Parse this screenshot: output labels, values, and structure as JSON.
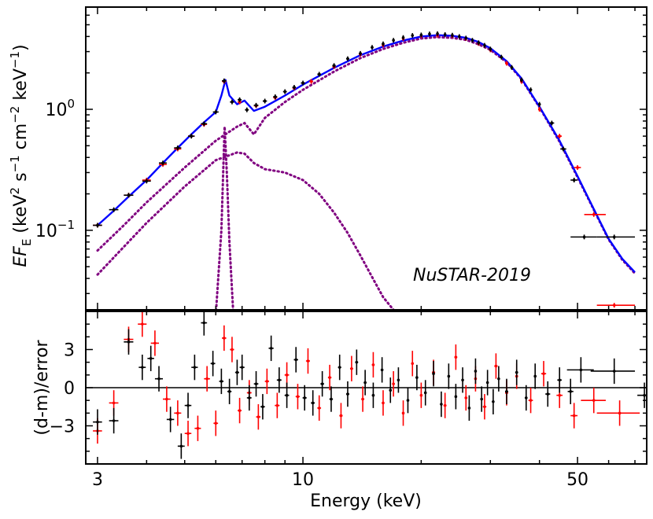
{
  "chart_data": {
    "type": "scatter",
    "annotation": "NuSTAR-2019",
    "xlabel": "Energy (keV)",
    "x_scale": "log",
    "x_ticks": [
      {
        "value": 3,
        "label": "3"
      },
      {
        "value": 10,
        "label": "10"
      },
      {
        "value": 50,
        "label": "50"
      }
    ],
    "xlim": [
      2.8,
      75
    ],
    "top_panel": {
      "ylabel_parts": [
        "EF",
        "E",
        " (keV",
        "2",
        " s",
        "−1",
        " cm",
        "−2",
        " keV",
        "−1",
        ")"
      ],
      "y_scale": "log",
      "ylim": [
        0.022,
        7
      ],
      "y_ticks": [
        {
          "value": 0.1,
          "mantissa": "10",
          "exp": "−1"
        },
        {
          "value": 1.0,
          "mantissa": "10",
          "exp": "0"
        }
      ],
      "model_total": {
        "name": "total model",
        "color": "#0000ff",
        "x": [
          3.0,
          3.3,
          3.6,
          4.0,
          4.4,
          4.8,
          5.2,
          5.6,
          6.0,
          6.2,
          6.35,
          6.5,
          6.8,
          7.1,
          7.5,
          8.0,
          9.0,
          10,
          12,
          14,
          16,
          18,
          20,
          22,
          24,
          26,
          28,
          30,
          33,
          36,
          40,
          45,
          50,
          55,
          60,
          65,
          70
        ],
        "y": [
          0.11,
          0.145,
          0.19,
          0.26,
          0.36,
          0.48,
          0.62,
          0.78,
          0.95,
          1.3,
          1.75,
          1.3,
          1.1,
          1.18,
          0.97,
          1.05,
          1.3,
          1.6,
          2.2,
          2.8,
          3.3,
          3.7,
          4.0,
          4.1,
          4.05,
          3.9,
          3.6,
          3.2,
          2.5,
          1.8,
          1.05,
          0.55,
          0.28,
          0.15,
          0.085,
          0.058,
          0.045
        ]
      },
      "model_components": [
        {
          "name": "component 1",
          "color": "#800080",
          "style": "dotted",
          "x": [
            3.0,
            3.5,
            4.0,
            5.0,
            6.0,
            6.8,
            7.1,
            7.5,
            8.0,
            9.0,
            10,
            12,
            14,
            16,
            18,
            20,
            22,
            24,
            26,
            28,
            30,
            33,
            36,
            40,
            45,
            50,
            55,
            60,
            65,
            70
          ],
          "y": [
            0.068,
            0.11,
            0.17,
            0.33,
            0.55,
            0.72,
            0.77,
            0.62,
            0.85,
            1.15,
            1.45,
            2.05,
            2.65,
            3.15,
            3.55,
            3.85,
            3.95,
            3.9,
            3.75,
            3.45,
            3.1,
            2.45,
            1.78,
            1.04,
            0.54,
            0.275,
            0.148,
            0.084,
            0.057,
            0.044
          ]
        },
        {
          "name": "component 2",
          "color": "#800080",
          "style": "dotted",
          "x": [
            3.0,
            3.5,
            4.0,
            5.0,
            6.0,
            6.8,
            7.1,
            7.5,
            8.0,
            9.0,
            10,
            11,
            12,
            13,
            14,
            15,
            16,
            17,
            17.5
          ],
          "y": [
            0.043,
            0.073,
            0.115,
            0.23,
            0.38,
            0.44,
            0.43,
            0.36,
            0.32,
            0.3,
            0.26,
            0.2,
            0.14,
            0.095,
            0.062,
            0.041,
            0.028,
            0.022,
            0.02
          ]
        },
        {
          "name": "line component",
          "color": "#800080",
          "style": "dotted",
          "x": [
            6.0,
            6.2,
            6.32,
            6.4,
            6.5,
            6.65
          ],
          "y": [
            0.02,
            0.1,
            0.72,
            0.3,
            0.08,
            0.02
          ]
        }
      ],
      "series": [
        {
          "name": "FPMA",
          "color": "#000000",
          "x": [
            3.0,
            3.3,
            3.6,
            4.0,
            4.4,
            4.8,
            5.2,
            5.6,
            6.0,
            6.3,
            6.6,
            6.9,
            7.2,
            7.6,
            8.0,
            8.5,
            9.0,
            9.5,
            10,
            11,
            12,
            13,
            14,
            15,
            16,
            17,
            18,
            19,
            20,
            21,
            22,
            23,
            24,
            25,
            26,
            27,
            28,
            29,
            30,
            32,
            34,
            36,
            38,
            40,
            43,
            46,
            49,
            52,
            62
          ],
          "y": [
            0.11,
            0.148,
            0.195,
            0.255,
            0.36,
            0.48,
            0.6,
            0.76,
            0.95,
            1.72,
            1.15,
            1.2,
            0.99,
            1.08,
            1.17,
            1.27,
            1.4,
            1.52,
            1.65,
            1.95,
            2.3,
            2.62,
            2.9,
            3.25,
            3.48,
            3.72,
            3.92,
            4.08,
            4.12,
            4.2,
            4.22,
            4.15,
            4.1,
            4.0,
            3.88,
            3.72,
            3.55,
            3.38,
            3.15,
            2.7,
            2.22,
            1.75,
            1.45,
            1.1,
            0.77,
            0.47,
            0.26,
            0.088,
            0.088
          ],
          "xerr_lo": [
            0.08,
            0.09,
            0.1,
            0.1,
            0.1,
            0.1,
            0.1,
            0.1,
            0.1,
            0.08,
            0.08,
            0.08,
            0.08,
            0.1,
            0.1,
            0.1,
            0.1,
            0.1,
            0.12,
            0.12,
            0.12,
            0.12,
            0.12,
            0.12,
            0.12,
            0.12,
            0.12,
            0.12,
            0.12,
            0.12,
            0.12,
            0.12,
            0.12,
            0.12,
            0.12,
            0.12,
            0.12,
            0.12,
            0.2,
            0.3,
            0.3,
            0.3,
            0.3,
            0.3,
            0.6,
            0.8,
            1.0,
            4.0,
            6.0
          ],
          "xerr_hi": [
            0.08,
            0.09,
            0.1,
            0.1,
            0.1,
            0.1,
            0.1,
            0.1,
            0.1,
            0.08,
            0.08,
            0.08,
            0.08,
            0.1,
            0.1,
            0.1,
            0.1,
            0.1,
            0.12,
            0.12,
            0.12,
            0.12,
            0.12,
            0.12,
            0.12,
            0.12,
            0.12,
            0.12,
            0.12,
            0.12,
            0.12,
            0.12,
            0.12,
            0.12,
            0.12,
            0.12,
            0.12,
            0.12,
            0.2,
            0.3,
            0.3,
            0.3,
            0.3,
            0.3,
            0.6,
            0.8,
            1.0,
            4.0,
            8.0
          ]
        },
        {
          "name": "FPMB",
          "color": "#ff0000",
          "x": [
            3.0,
            3.6,
            4.0,
            4.4,
            4.8,
            5.2,
            5.6,
            6.3,
            6.9,
            7.6,
            8.5,
            9.5,
            10.5,
            12,
            14,
            16,
            18,
            20,
            22,
            24,
            26,
            28,
            30,
            33,
            36,
            40,
            45,
            50,
            55,
            62
          ],
          "y": [
            0.11,
            0.195,
            0.26,
            0.35,
            0.47,
            0.6,
            0.75,
            1.7,
            1.15,
            1.07,
            1.25,
            1.5,
            1.7,
            2.25,
            2.85,
            3.4,
            3.85,
            4.05,
            4.1,
            4.05,
            3.85,
            3.5,
            3.1,
            2.4,
            1.7,
            1.0,
            0.6,
            0.33,
            0.135,
            0.024
          ],
          "xerr_lo": [
            0.08,
            0.1,
            0.1,
            0.1,
            0.1,
            0.1,
            0.1,
            0.08,
            0.08,
            0.1,
            0.1,
            0.1,
            0.12,
            0.12,
            0.12,
            0.12,
            0.12,
            0.12,
            0.12,
            0.12,
            0.12,
            0.12,
            0.2,
            0.3,
            0.3,
            0.3,
            0.6,
            1.0,
            3.0,
            6.0
          ],
          "xerr_hi": [
            0.08,
            0.1,
            0.1,
            0.1,
            0.1,
            0.1,
            0.1,
            0.08,
            0.08,
            0.1,
            0.1,
            0.1,
            0.12,
            0.12,
            0.12,
            0.12,
            0.12,
            0.12,
            0.12,
            0.12,
            0.12,
            0.12,
            0.2,
            0.3,
            0.3,
            0.3,
            0.6,
            1.0,
            4.0,
            8.0
          ]
        }
      ]
    },
    "bottom_panel": {
      "ylabel": "(d-m)/error",
      "ylim": [
        -6,
        6
      ],
      "y_ticks": [
        {
          "value": -3,
          "label": "−3"
        },
        {
          "value": 0,
          "label": "0"
        },
        {
          "value": 3,
          "label": "3"
        }
      ],
      "reference_line": 0,
      "series": [
        {
          "name": "FPMA",
          "color": "#000000",
          "x": [
            3.0,
            3.3,
            3.6,
            3.9,
            4.1,
            4.3,
            4.6,
            4.9,
            5.1,
            5.3,
            5.6,
            5.9,
            6.2,
            6.5,
            6.8,
            7.0,
            7.3,
            7.6,
            7.9,
            8.3,
            8.7,
            9.1,
            9.6,
            10.1,
            10.6,
            11.2,
            11.8,
            12.4,
            13.0,
            13.7,
            14.4,
            15.1,
            15.9,
            16.7,
            17.5,
            18.5,
            19.5,
            20.5,
            21.5,
            22.5,
            23.5,
            24.5,
            25.5,
            26.5,
            27.5,
            28.5,
            29.5,
            30.5,
            31.5,
            33,
            35,
            37,
            39,
            42,
            45,
            48,
            51,
            62,
            74
          ],
          "y": [
            -2.7,
            -2.6,
            3.6,
            1.6,
            2.3,
            0.7,
            -2.5,
            -4.6,
            -1.4,
            1.6,
            5.1,
            1.9,
            0.5,
            -0.3,
            1.2,
            1.6,
            -0.8,
            0.3,
            -1.5,
            3.1,
            0.6,
            -0.6,
            2.2,
            -0.8,
            -1.2,
            0.3,
            -0.9,
            1.6,
            -0.5,
            2.0,
            0.4,
            -0.6,
            1.4,
            -0.2,
            0.6,
            -1.0,
            0.8,
            -0.4,
            1.1,
            -1.3,
            0.9,
            -0.7,
            0.6,
            -1.6,
            1.3,
            -0.9,
            0.4,
            -1.1,
            0.7,
            -0.3,
            1.2,
            -0.8,
            0.9,
            -0.5,
            0.6,
            -0.3,
            1.4,
            1.3,
            -0.6
          ],
          "xerr": [
            0.08,
            0.09,
            0.1,
            0.08,
            0.08,
            0.1,
            0.1,
            0.1,
            0.1,
            0.1,
            0.1,
            0.08,
            0.08,
            0.08,
            0.08,
            0.1,
            0.1,
            0.1,
            0.1,
            0.12,
            0.12,
            0.12,
            0.12,
            0.12,
            0.12,
            0.12,
            0.12,
            0.12,
            0.12,
            0.12,
            0.12,
            0.12,
            0.12,
            0.12,
            0.12,
            0.12,
            0.12,
            0.12,
            0.12,
            0.12,
            0.12,
            0.12,
            0.12,
            0.12,
            0.12,
            0.12,
            0.12,
            0.12,
            0.12,
            0.3,
            0.3,
            0.3,
            0.3,
            0.6,
            0.6,
            0.8,
            4.0,
            8.0,
            3.0
          ]
        },
        {
          "name": "FPMB",
          "color": "#ff0000",
          "x": [
            3.0,
            3.3,
            3.6,
            3.9,
            4.2,
            4.5,
            4.8,
            5.1,
            5.4,
            5.7,
            6.0,
            6.3,
            6.6,
            6.9,
            7.3,
            7.7,
            8.1,
            8.6,
            9.1,
            9.7,
            10.3,
            11.0,
            11.7,
            12.5,
            13.3,
            14.2,
            15.1,
            16.0,
            17.0,
            18.0,
            19.0,
            20.0,
            21.5,
            23.0,
            24.5,
            26.0,
            27.5,
            29.0,
            31.0,
            33.0,
            35.0,
            38.0,
            41.0,
            45.0,
            49.0,
            55.0,
            64.0
          ],
          "y": [
            -3.4,
            -1.2,
            3.8,
            5.0,
            3.5,
            -0.9,
            -2.0,
            -3.6,
            -3.2,
            0.7,
            -2.8,
            3.9,
            3.0,
            -1.8,
            -0.4,
            -2.3,
            0.5,
            -1.4,
            1.0,
            -0.7,
            2.1,
            -1.6,
            0.8,
            -2.2,
            1.5,
            -0.9,
            1.8,
            -1.2,
            0.3,
            -2.0,
            1.9,
            -0.6,
            1.2,
            -1.4,
            2.4,
            -0.8,
            0.7,
            -1.5,
            1.7,
            -0.4,
            0.9,
            -1.0,
            1.1,
            -0.6,
            -2.2,
            -1.0,
            -2.0
          ],
          "xerr": [
            0.08,
            0.09,
            0.1,
            0.1,
            0.1,
            0.1,
            0.1,
            0.1,
            0.1,
            0.1,
            0.08,
            0.08,
            0.08,
            0.08,
            0.1,
            0.1,
            0.1,
            0.12,
            0.12,
            0.12,
            0.12,
            0.12,
            0.12,
            0.12,
            0.12,
            0.12,
            0.12,
            0.12,
            0.12,
            0.12,
            0.12,
            0.12,
            0.2,
            0.2,
            0.2,
            0.2,
            0.2,
            0.3,
            0.3,
            0.3,
            0.3,
            0.5,
            0.6,
            0.8,
            1.0,
            4.0,
            8.0
          ]
        }
      ]
    }
  }
}
